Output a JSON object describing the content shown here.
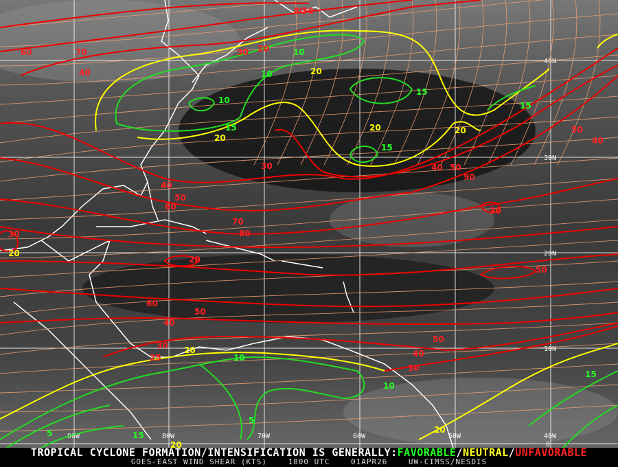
{
  "map": {
    "product": "GOES-EAST WIND SHEAR (KTS)",
    "time": "1800 UTC",
    "date": "01APR26",
    "source": "UW-CIMSS/NESDIS",
    "headline_prefix": "TROPICAL CYCLONE FORMATION/INTENSIFICATION IS GENERALLY:",
    "legend": [
      {
        "label": "FAVORABLE",
        "color": "#22ff22"
      },
      {
        "label": "/",
        "color": "#ffffff"
      },
      {
        "label": "NEUTRAL",
        "color": "#ffff22"
      },
      {
        "label": "/",
        "color": "#ffffff"
      },
      {
        "label": "UNFAVORABLE",
        "color": "#ff2222"
      }
    ],
    "lon_labels": [
      "90W",
      "80W",
      "70W",
      "60W",
      "50W",
      "40W"
    ],
    "lat_labels": [
      "40N",
      "30N",
      "20N",
      "10N",
      "0"
    ],
    "contour_colors": {
      "favorable": "#22dd22",
      "neutral": "#ffff00",
      "unfavorable": "#ee0000",
      "streamline": "#f0a070"
    },
    "contour_labels": [
      "60",
      "70",
      "40",
      "30",
      "20",
      "10",
      "10",
      "20",
      "10",
      "15",
      "20",
      "15",
      "15",
      "20",
      "15",
      "20",
      "40",
      "50",
      "30",
      "40",
      "50",
      "60",
      "70",
      "80",
      "30",
      "20",
      "20",
      "60",
      "50",
      "40",
      "30",
      "20",
      "10",
      "5",
      "5",
      "15",
      "20",
      "25",
      "30",
      "40",
      "50",
      "10",
      "15",
      "20",
      "50",
      "40",
      "30",
      "50",
      "90",
      "80",
      "70"
    ]
  }
}
